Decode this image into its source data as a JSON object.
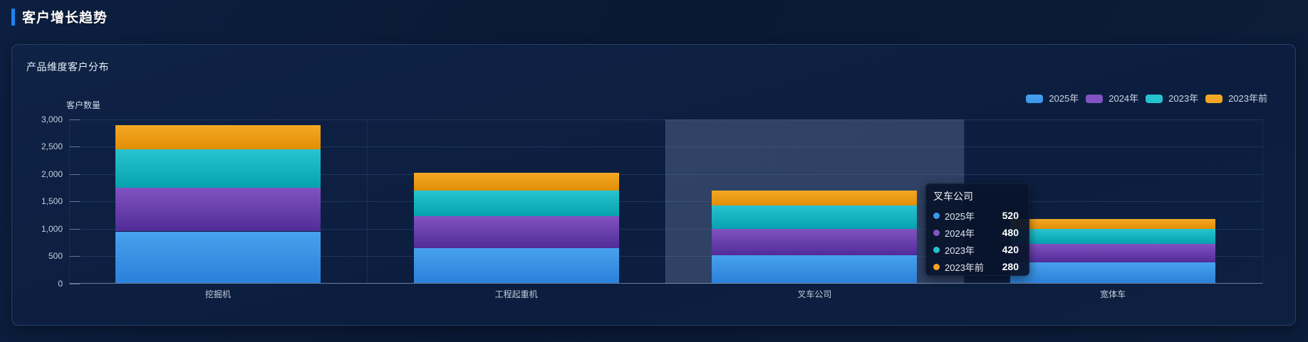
{
  "header": {
    "title": "客户增长趋势"
  },
  "card": {
    "title": "产品维度客户分布"
  },
  "chart_data": {
    "type": "bar",
    "stacked": true,
    "title": "产品维度客户分布",
    "xlabel": "",
    "ylabel": "客户数量",
    "categories": [
      "挖掘机",
      "工程起重机",
      "叉车公司",
      "宽体车"
    ],
    "series": [
      {
        "name": "2025年",
        "color": "#3B97E8",
        "color_top": "#47A2ED",
        "color_bottom": "#2B80D9",
        "values": [
          950,
          650,
          520,
          380
        ]
      },
      {
        "name": "2024年",
        "color": "#8355C4",
        "color_top": "#8152C1",
        "color_bottom": "#512C98",
        "values": [
          800,
          580,
          480,
          340
        ]
      },
      {
        "name": "2023年",
        "color": "#23C0CD",
        "color_top": "#28C3D0",
        "color_bottom": "#06A2B0",
        "values": [
          700,
          470,
          420,
          280
        ]
      },
      {
        "name": "2023年前",
        "color": "#F3A31E",
        "color_top": "#F5A825",
        "color_bottom": "#E18E05",
        "values": [
          450,
          330,
          280,
          180
        ]
      }
    ],
    "totals": [
      2900,
      2030,
      1700,
      1180
    ],
    "ylim": [
      0,
      3000
    ],
    "yticks": {
      "values": [
        0,
        500,
        1000,
        1500,
        2000,
        2500,
        3000
      ],
      "labels": [
        "0",
        "500",
        "1,000",
        "1,500",
        "2,000",
        "2,500",
        "3,000"
      ]
    },
    "grid": true,
    "legend_position": "top-right",
    "hover": {
      "category_index": 2
    },
    "tooltip": {
      "title": "叉车公司",
      "rows": [
        {
          "label": "2025年",
          "value": "520"
        },
        {
          "label": "2024年",
          "value": "480"
        },
        {
          "label": "2023年",
          "value": "420"
        },
        {
          "label": "2023年前",
          "value": "280"
        }
      ]
    }
  }
}
